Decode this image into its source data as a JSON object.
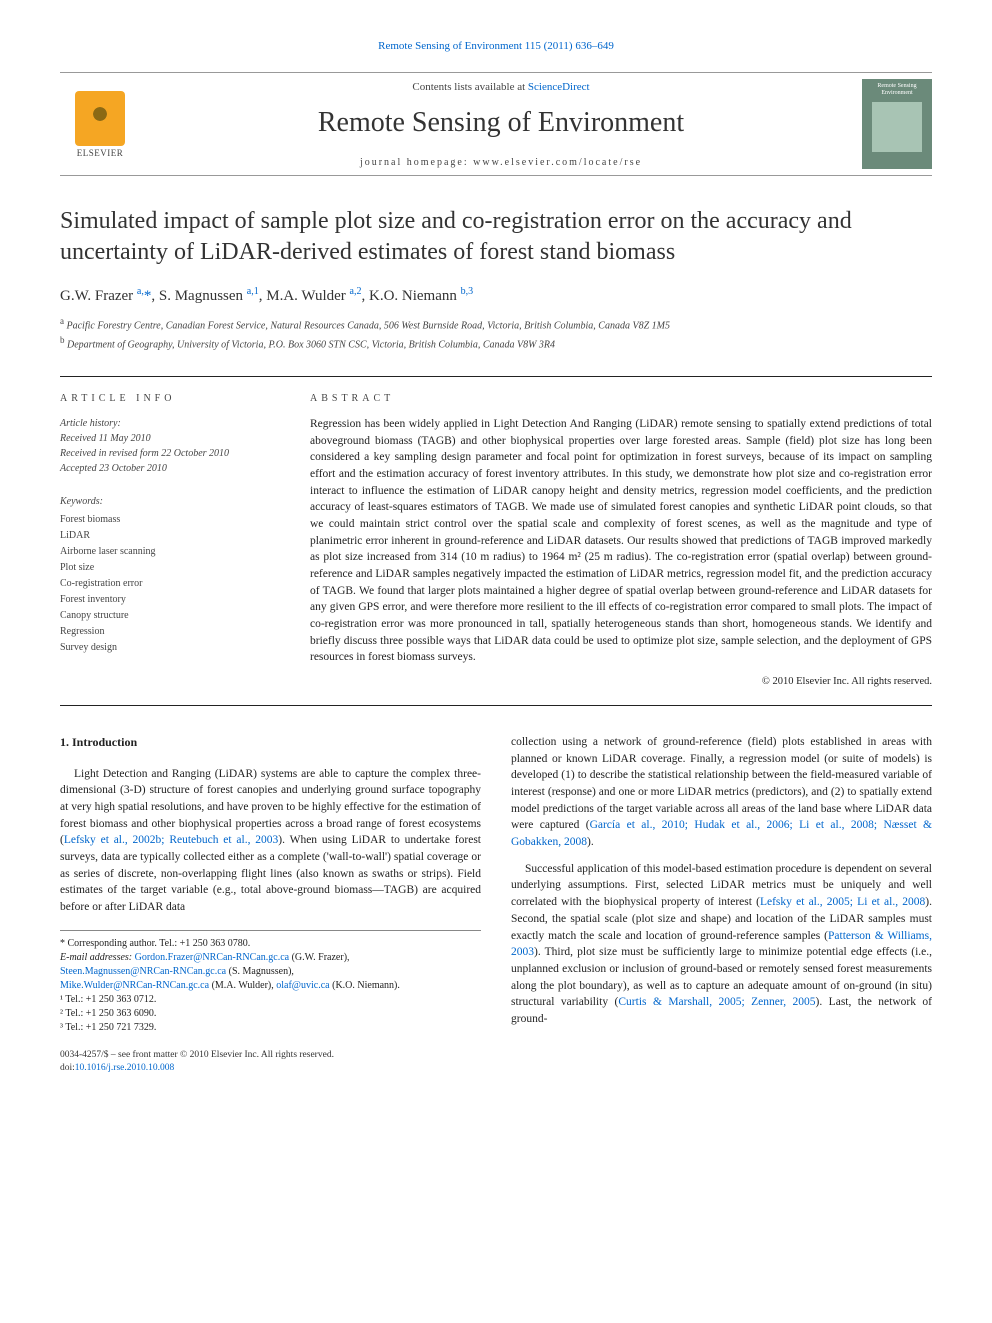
{
  "journal_ref_link": "Remote Sensing of Environment 115 (2011) 636–649",
  "header": {
    "contents_prefix": "Contents lists available at ",
    "contents_link": "ScienceDirect",
    "journal_name": "Remote Sensing of Environment",
    "homepage_prefix": "journal homepage: ",
    "homepage_url": "www.elsevier.com/locate/rse",
    "publisher": "ELSEVIER",
    "cover_title": "Remote Sensing Environment"
  },
  "article": {
    "title": "Simulated impact of sample plot size and co-registration error on the accuracy and uncertainty of LiDAR-derived estimates of forest stand biomass",
    "authors_html": "G.W. Frazer <sup><a>a,</a></sup><a>*</a>, S. Magnussen <sup><a>a,1</a></sup>, M.A. Wulder <sup><a>a,2</a></sup>, K.O. Niemann <sup><a>b,3</a></sup>",
    "affiliations": [
      {
        "sup": "a",
        "text": "Pacific Forestry Centre, Canadian Forest Service, Natural Resources Canada, 506 West Burnside Road, Victoria, British Columbia, Canada V8Z 1M5"
      },
      {
        "sup": "b",
        "text": "Department of Geography, University of Victoria, P.O. Box 3060 STN CSC, Victoria, British Columbia, Canada V8W 3R4"
      }
    ]
  },
  "article_info": {
    "section_label": "ARTICLE INFO",
    "history_label": "Article history:",
    "history": [
      "Received 11 May 2010",
      "Received in revised form 22 October 2010",
      "Accepted 23 October 2010"
    ],
    "keywords_label": "Keywords:",
    "keywords": [
      "Forest biomass",
      "LiDAR",
      "Airborne laser scanning",
      "Plot size",
      "Co-registration error",
      "Forest inventory",
      "Canopy structure",
      "Regression",
      "Survey design"
    ]
  },
  "abstract": {
    "section_label": "ABSTRACT",
    "text": "Regression has been widely applied in Light Detection And Ranging (LiDAR) remote sensing to spatially extend predictions of total aboveground biomass (TAGB) and other biophysical properties over large forested areas. Sample (field) plot size has long been considered a key sampling design parameter and focal point for optimization in forest surveys, because of its impact on sampling effort and the estimation accuracy of forest inventory attributes. In this study, we demonstrate how plot size and co-registration error interact to influence the estimation of LiDAR canopy height and density metrics, regression model coefficients, and the prediction accuracy of least-squares estimators of TAGB. We made use of simulated forest canopies and synthetic LiDAR point clouds, so that we could maintain strict control over the spatial scale and complexity of forest scenes, as well as the magnitude and type of planimetric error inherent in ground-reference and LiDAR datasets. Our results showed that predictions of TAGB improved markedly as plot size increased from 314 (10 m radius) to 1964 m² (25 m radius). The co-registration error (spatial overlap) between ground-reference and LiDAR samples negatively impacted the estimation of LiDAR metrics, regression model fit, and the prediction accuracy of TAGB. We found that larger plots maintained a higher degree of spatial overlap between ground-reference and LiDAR datasets for any given GPS error, and were therefore more resilient to the ill effects of co-registration error compared to small plots. The impact of co-registration error was more pronounced in tall, spatially heterogeneous stands than short, homogeneous stands. We identify and briefly discuss three possible ways that LiDAR data could be used to optimize plot size, sample selection, and the deployment of GPS resources in forest biomass surveys.",
    "copyright": "© 2010 Elsevier Inc. All rights reserved."
  },
  "body": {
    "intro_heading": "1. Introduction",
    "col1_p1_pre": "Light Detection and Ranging (LiDAR) systems are able to capture the complex three-dimensional (3-D) structure of forest canopies and underlying ground surface topography at very high spatial resolutions, and have proven to be highly effective for the estimation of forest biomass and other biophysical properties across a broad range of forest ecosystems (",
    "col1_p1_link": "Lefsky et al., 2002b; Reutebuch et al., 2003",
    "col1_p1_post": "). When using LiDAR to undertake forest surveys, data are typically collected either as a complete ('wall-to-wall') spatial coverage or as series of discrete, non-overlapping flight lines (also known as swaths or strips). Field estimates of the target variable (e.g., total above-ground biomass—TAGB) are acquired before or after LiDAR data",
    "col2_p1_pre": "collection using a network of ground-reference (field) plots established in areas with planned or known LiDAR coverage. Finally, a regression model (or suite of models) is developed (1) to describe the statistical relationship between the field-measured variable of interest (response) and one or more LiDAR metrics (predictors), and (2) to spatially extend model predictions of the target variable across all areas of the land base where LiDAR data were captured (",
    "col2_p1_link": "García et al., 2010; Hudak et al., 2006; Li et al., 2008; Næsset & Gobakken, 2008",
    "col2_p1_post": ").",
    "col2_p2_a": "Successful application of this model-based estimation procedure is dependent on several underlying assumptions. First, selected LiDAR metrics must be uniquely and well correlated with the biophysical property of interest (",
    "col2_p2_link1": "Lefsky et al., 2005; Li et al., 2008",
    "col2_p2_b": "). Second, the spatial scale (plot size and shape) and location of the LiDAR samples must exactly match the scale and location of ground-reference samples (",
    "col2_p2_link2": "Patterson & Williams, 2003",
    "col2_p2_c": "). Third, plot size must be sufficiently large to minimize potential edge effects (i.e., unplanned exclusion or inclusion of ground-based or remotely sensed forest measurements along the plot boundary), as well as to capture an adequate amount of on-ground (in situ) structural variability (",
    "col2_p2_link3": "Curtis & Marshall, 2005; Zenner, 2005",
    "col2_p2_d": "). Last, the network of ground-"
  },
  "footnotes": {
    "corr": "* Corresponding author. Tel.: +1 250 363 0780.",
    "emails_label": "E-mail addresses: ",
    "email1": "Gordon.Frazer@NRCan-RNCan.gc.ca",
    "email1_who": " (G.W. Frazer),",
    "email2": "Steen.Magnussen@NRCan-RNCan.gc.ca",
    "email2_who": " (S. Magnussen),",
    "email3": "Mike.Wulder@NRCan-RNCan.gc.ca",
    "email3_who": " (M.A. Wulder), ",
    "email4": "olaf@uvic.ca",
    "email4_who": " (K.O. Niemann).",
    "tel1": "¹ Tel.: +1 250 363 0712.",
    "tel2": "² Tel.: +1 250 363 6090.",
    "tel3": "³ Tel.: +1 250 721 7329."
  },
  "footer": {
    "front_matter": "0034-4257/$ – see front matter © 2010 Elsevier Inc. All rights reserved.",
    "doi_prefix": "doi:",
    "doi": "10.1016/j.rse.2010.10.008"
  },
  "colors": {
    "link": "#0066cc",
    "text": "#222222",
    "rule": "#222222",
    "publisher_orange": "#e67a00"
  }
}
